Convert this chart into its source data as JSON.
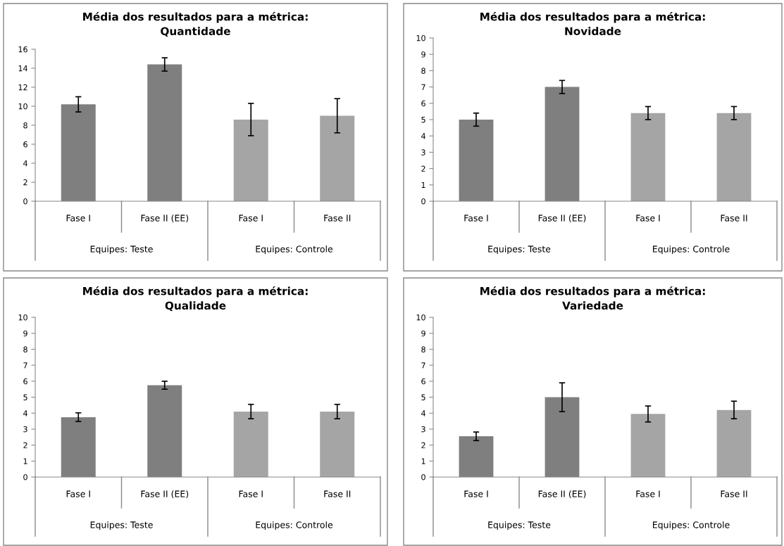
{
  "chart_data": [
    {
      "type": "bar",
      "title": "Média dos resultados para a métrica:\nQuantidade",
      "categories": [
        "Fase I",
        "Fase II (EE)",
        "Fase I",
        "Fase II"
      ],
      "values": [
        10.2,
        14.4,
        8.6,
        9.0
      ],
      "errors": [
        0.8,
        0.7,
        1.7,
        1.8
      ],
      "colors": [
        "#7f7f7f",
        "#7f7f7f",
        "#a5a5a5",
        "#a5a5a5"
      ],
      "ylim": [
        0,
        16
      ],
      "yticks": [
        0,
        2,
        4,
        6,
        8,
        10,
        12,
        14,
        16
      ],
      "annotations": [
        "Equipes: Teste",
        "Equipes: Controle"
      ]
    },
    {
      "type": "bar",
      "title": "Média dos resultados para a métrica:\nNovidade",
      "categories": [
        "Fase I",
        "Fase II (EE)",
        "Fase I",
        "Fase II"
      ],
      "values": [
        5.0,
        7.0,
        5.4,
        5.4
      ],
      "errors": [
        0.4,
        0.4,
        0.4,
        0.4
      ],
      "colors": [
        "#7f7f7f",
        "#7f7f7f",
        "#a5a5a5",
        "#a5a5a5"
      ],
      "ylim": [
        0,
        10
      ],
      "yticks": [
        0,
        1,
        2,
        3,
        4,
        5,
        6,
        7,
        8,
        9,
        10
      ],
      "annotations": [
        "Equipes: Teste",
        "Equipes: Controle"
      ]
    },
    {
      "type": "bar",
      "title": "Média dos resultados para a métrica:\nQualidade",
      "categories": [
        "Fase I",
        "Fase II (EE)",
        "Fase I",
        "Fase II"
      ],
      "values": [
        3.75,
        5.75,
        4.1,
        4.1
      ],
      "errors": [
        0.27,
        0.25,
        0.45,
        0.45
      ],
      "colors": [
        "#7f7f7f",
        "#7f7f7f",
        "#a5a5a5",
        "#a5a5a5"
      ],
      "ylim": [
        0,
        10
      ],
      "yticks": [
        0,
        1,
        2,
        3,
        4,
        5,
        6,
        7,
        8,
        9,
        10
      ],
      "annotations": [
        "Equipes: Teste",
        "Equipes: Controle"
      ]
    },
    {
      "type": "bar",
      "title": "Média dos resultados para a métrica:\nVariedade",
      "categories": [
        "Fase I",
        "Fase II (EE)",
        "Fase I",
        "Fase II"
      ],
      "values": [
        2.55,
        5.0,
        3.95,
        4.2
      ],
      "errors": [
        0.27,
        0.9,
        0.5,
        0.55
      ],
      "colors": [
        "#7f7f7f",
        "#7f7f7f",
        "#a5a5a5",
        "#a5a5a5"
      ],
      "ylim": [
        0,
        10
      ],
      "yticks": [
        0,
        1,
        2,
        3,
        4,
        5,
        6,
        7,
        8,
        9,
        10
      ],
      "annotations": [
        "Equipes: Teste",
        "Equipes: Controle"
      ]
    }
  ]
}
